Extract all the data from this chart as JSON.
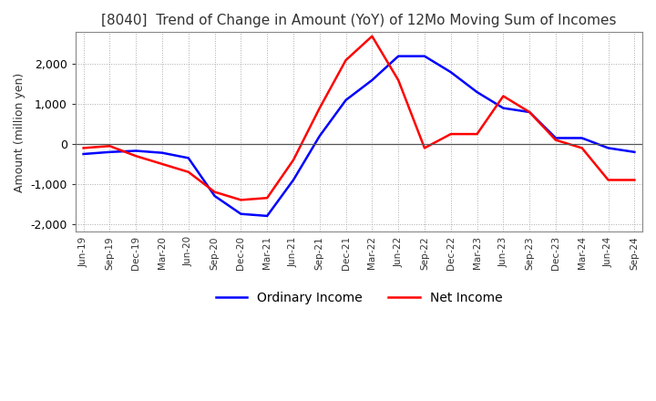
{
  "title": "[8040]  Trend of Change in Amount (YoY) of 12Mo Moving Sum of Incomes",
  "ylabel": "Amount (million yen)",
  "ylim": [
    -2200,
    2800
  ],
  "yticks": [
    -2000,
    -1000,
    0,
    1000,
    2000
  ],
  "background_color": "#ffffff",
  "grid_color": "#aaaaaa",
  "line_colors": {
    "ordinary": "#0000ff",
    "net": "#ff0000"
  },
  "x_labels": [
    "Jun-19",
    "Sep-19",
    "Dec-19",
    "Mar-20",
    "Jun-20",
    "Sep-20",
    "Dec-20",
    "Mar-21",
    "Jun-21",
    "Sep-21",
    "Dec-21",
    "Mar-22",
    "Jun-22",
    "Sep-22",
    "Dec-22",
    "Mar-23",
    "Jun-23",
    "Sep-23",
    "Dec-23",
    "Mar-24",
    "Jun-24",
    "Sep-24"
  ],
  "ordinary_income": [
    -250,
    -200,
    -170,
    -220,
    -350,
    -1300,
    -1750,
    -1800,
    -900,
    200,
    1100,
    1600,
    2200,
    2200,
    1800,
    1300,
    900,
    800,
    150,
    150,
    -100,
    -200
  ],
  "net_income": [
    -100,
    -50,
    -300,
    -500,
    -700,
    -1200,
    -1400,
    -1350,
    -400,
    900,
    2100,
    2700,
    1600,
    -100,
    250,
    250,
    1200,
    800,
    100,
    -100,
    -900,
    -900
  ],
  "legend_labels": [
    "Ordinary Income",
    "Net Income"
  ]
}
